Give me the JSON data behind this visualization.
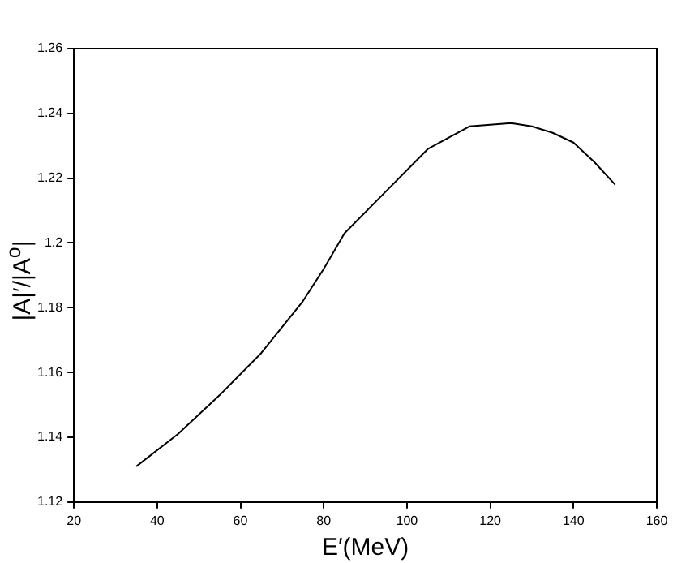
{
  "chart_data": {
    "type": "line",
    "xlabel": "E′(MeV)",
    "ylabel": "|A|′/|A$^{o}$|",
    "x": [
      35,
      45,
      55,
      65,
      75,
      80,
      85,
      95,
      105,
      115,
      125,
      130,
      135,
      140,
      145,
      150
    ],
    "series": [
      {
        "color": "#000000",
        "values": [
          1.131,
          1.141,
          1.153,
          1.166,
          1.182,
          1.192,
          1.203,
          1.216,
          1.229,
          1.236,
          1.237,
          1.236,
          1.234,
          1.231,
          1.225,
          1.218
        ]
      }
    ],
    "xlim": [
      20,
      160
    ],
    "xticks": [
      20,
      40,
      60,
      80,
      100,
      120,
      140,
      160
    ],
    "ylim": [
      1.12,
      1.26
    ],
    "yticks": [
      1.12,
      1.14,
      1.16,
      1.18,
      1.2,
      1.22,
      1.24,
      1.26
    ],
    "grid": false,
    "legend": false,
    "marker": "none",
    "line_style": "solid"
  }
}
